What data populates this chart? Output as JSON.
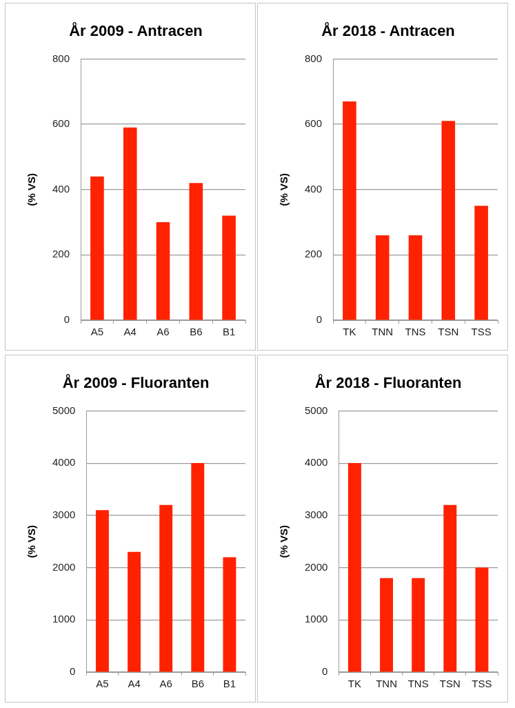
{
  "chart_data": [
    {
      "type": "bar",
      "title": "År 2009 - Antracen",
      "ylabel": "(% VS)",
      "categories": [
        "A5",
        "A4",
        "A6",
        "B6",
        "B1"
      ],
      "values": [
        440,
        590,
        300,
        420,
        320
      ],
      "color": "#ff2200",
      "ylim": [
        0,
        800
      ],
      "yticks": [
        0,
        200,
        400,
        600,
        800
      ],
      "grid": "y"
    },
    {
      "type": "bar",
      "title": "År 2018 - Antracen",
      "ylabel": "(% VS)",
      "categories": [
        "TK",
        "TNN",
        "TNS",
        "TSN",
        "TSS"
      ],
      "values": [
        670,
        260,
        260,
        610,
        350
      ],
      "color": "#ff2200",
      "ylim": [
        0,
        800
      ],
      "yticks": [
        0,
        200,
        400,
        600,
        800
      ],
      "grid": "y"
    },
    {
      "type": "bar",
      "title": "År 2009 - Fluoranten",
      "ylabel": "(% VS)",
      "categories": [
        "A5",
        "A4",
        "A6",
        "B6",
        "B1"
      ],
      "values": [
        3100,
        2300,
        3200,
        4000,
        2200
      ],
      "color": "#ff2200",
      "ylim": [
        0,
        5000
      ],
      "yticks": [
        0,
        1000,
        2000,
        3000,
        4000,
        5000
      ],
      "grid": "y"
    },
    {
      "type": "bar",
      "title": "År 2018 - Fluoranten",
      "ylabel": "(% VS)",
      "categories": [
        "TK",
        "TNN",
        "TNS",
        "TSN",
        "TSS"
      ],
      "values": [
        4000,
        1800,
        1800,
        3200,
        2000
      ],
      "color": "#ff2200",
      "ylim": [
        0,
        5000
      ],
      "yticks": [
        0,
        1000,
        2000,
        3000,
        4000,
        5000
      ],
      "grid": "y"
    }
  ]
}
